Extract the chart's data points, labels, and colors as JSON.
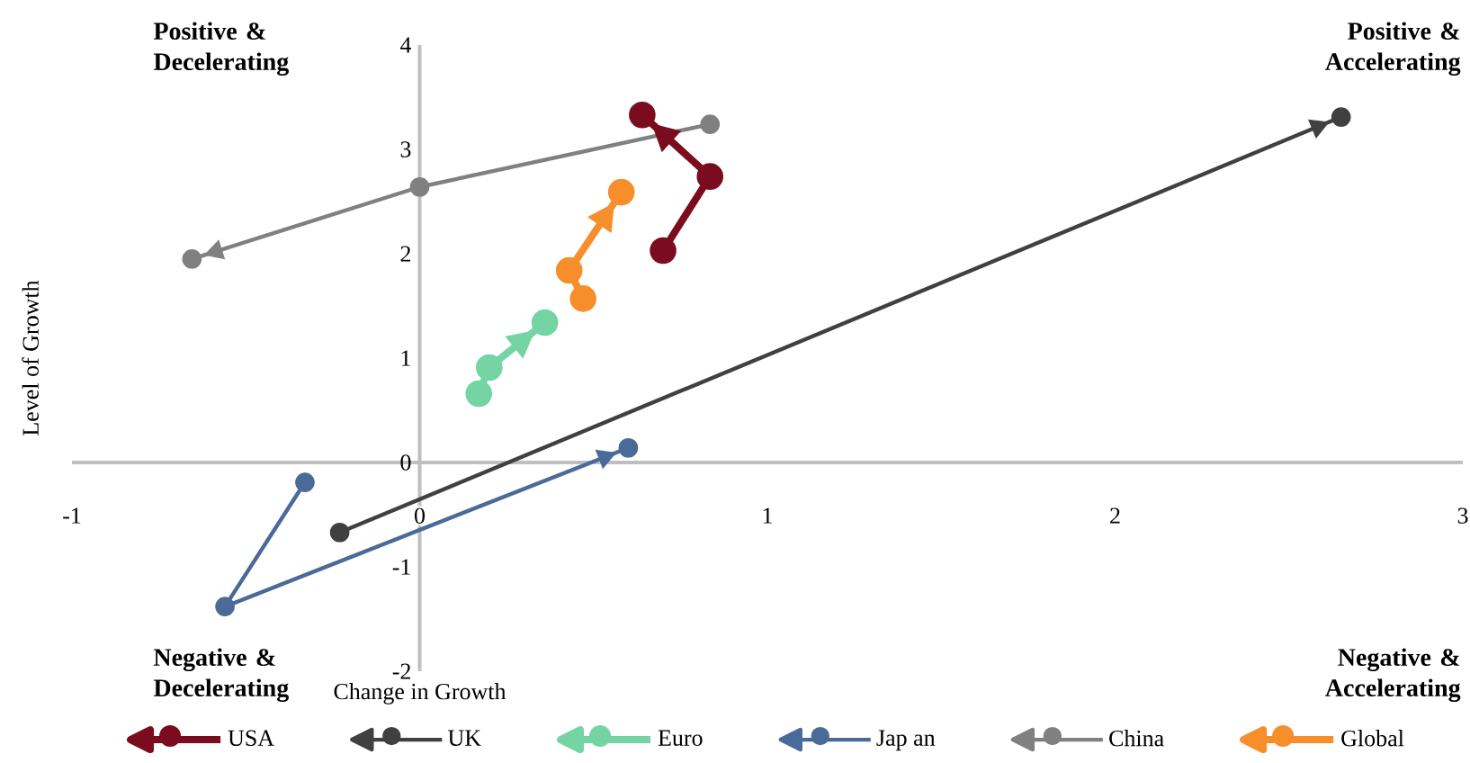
{
  "chart_data": {
    "type": "line",
    "xlabel": "Change in Growth",
    "ylabel": "Level of Growth",
    "xlim": [
      -1,
      3
    ],
    "ylim": [
      -2,
      4
    ],
    "xticks": [
      -1,
      0,
      1,
      2,
      3
    ],
    "yticks": [
      -2,
      -1,
      0,
      1,
      2,
      3,
      4
    ],
    "marker": "circle",
    "legend": "bottom",
    "grid": false,
    "annotations": [
      "Positive & Decelerating",
      "Positive & Accelerating",
      "Negative & Decelerating",
      "Negative & Accelerating"
    ],
    "series": [
      {
        "name": "USA",
        "color": "#7b0c1f",
        "x": [
          0.7,
          0.835,
          0.64
        ],
        "values": [
          2.03,
          2.74,
          3.33
        ]
      },
      {
        "name": "UK",
        "color": "#404040",
        "x": [
          -0.23,
          2.65
        ],
        "values": [
          -0.67,
          3.31
        ]
      },
      {
        "name": "Euro",
        "color": "#74d4a4",
        "x": [
          0.17,
          0.2,
          0.36
        ],
        "values": [
          0.66,
          0.91,
          1.34
        ]
      },
      {
        "name": "Jap an",
        "color": "#4a6a98",
        "x": [
          -0.33,
          -0.56,
          0.6
        ],
        "values": [
          -0.19,
          -1.38,
          0.14
        ]
      },
      {
        "name": "China",
        "color": "#808080",
        "x": [
          0.835,
          0.0,
          -0.655
        ],
        "values": [
          3.24,
          2.64,
          1.95
        ]
      },
      {
        "name": "Global",
        "color": "#f78e2c",
        "x": [
          0.47,
          0.43,
          0.58
        ],
        "values": [
          1.57,
          1.84,
          2.59
        ]
      }
    ]
  }
}
